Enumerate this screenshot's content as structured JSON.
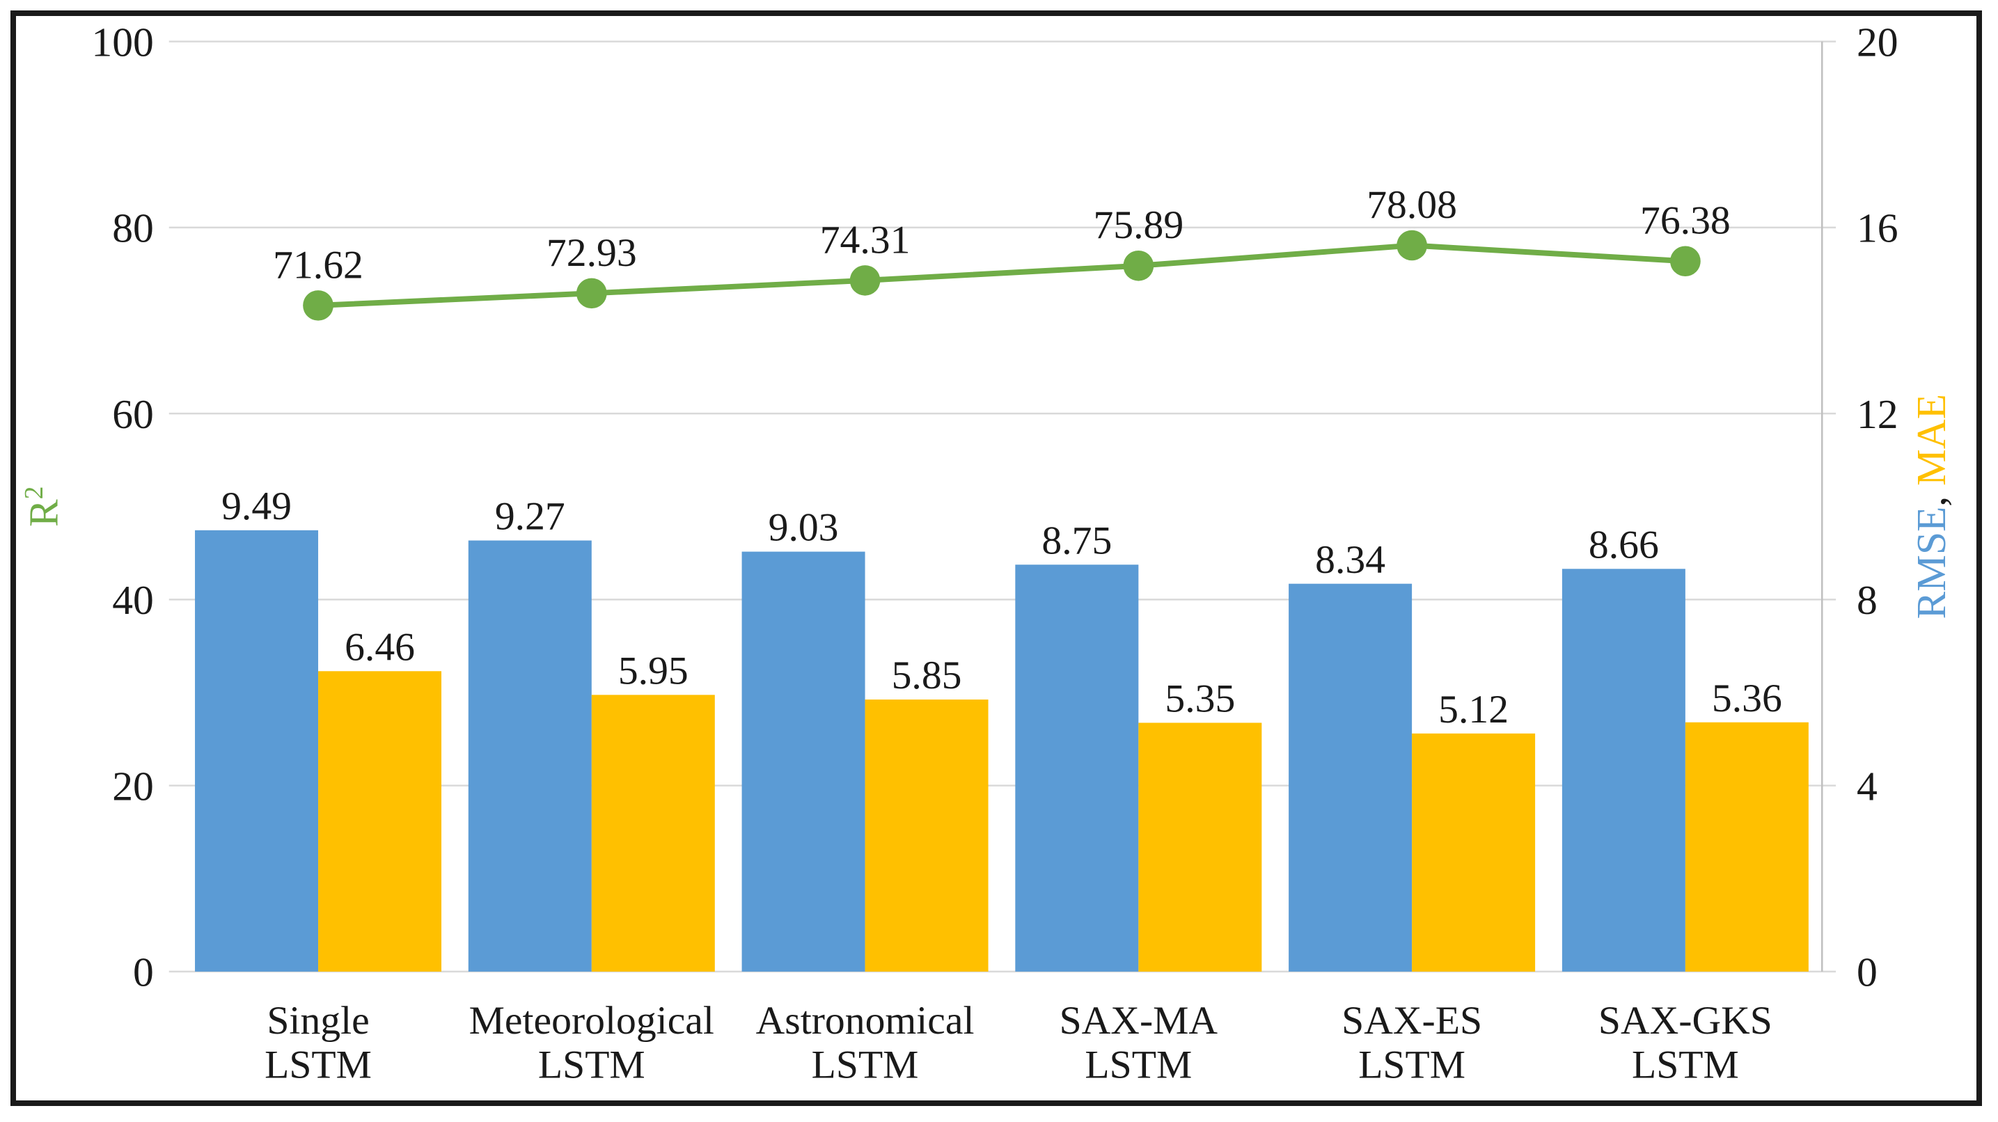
{
  "chart_data": {
    "type": "combo-bar-line",
    "categories": [
      [
        "Single",
        "LSTM"
      ],
      [
        "Meteorological",
        "LSTM"
      ],
      [
        "Astronomical",
        "LSTM"
      ],
      [
        "SAX-MA",
        "LSTM"
      ],
      [
        "SAX-ES",
        "LSTM"
      ],
      [
        "SAX-GKS",
        "LSTM"
      ]
    ],
    "series": [
      {
        "name": "RMSE",
        "type": "bar",
        "axis": "right",
        "color": "#5B9BD5",
        "values": [
          9.49,
          9.27,
          9.03,
          8.75,
          8.34,
          8.66
        ]
      },
      {
        "name": "MAE",
        "type": "bar",
        "axis": "right",
        "color": "#FFC000",
        "values": [
          6.46,
          5.95,
          5.85,
          5.35,
          5.12,
          5.36
        ]
      },
      {
        "name": "R2",
        "type": "line",
        "axis": "left",
        "color": "#70AD47",
        "values": [
          71.62,
          72.93,
          74.31,
          75.89,
          78.08,
          76.38
        ]
      }
    ],
    "left_axis": {
      "title_base": "R",
      "title_sup": "2",
      "title_color": "#70AD47",
      "range": [
        0,
        100
      ],
      "ticks": [
        0,
        20,
        40,
        60,
        80,
        100
      ]
    },
    "right_axis": {
      "title_parts": [
        {
          "text": "RMSE",
          "color": "#5B9BD5"
        },
        {
          "text": ", ",
          "color": "#1a1a1a"
        },
        {
          "text": "MAE",
          "color": "#FFC000"
        }
      ],
      "range": [
        0,
        20
      ],
      "ticks": [
        0,
        4,
        8,
        12,
        16,
        20
      ]
    },
    "grid": {
      "show": true,
      "color": "#D9D9D9",
      "axis_line_color": "#BFBFBF"
    },
    "text_color": "#1a1a1a",
    "background": "#FFFFFF",
    "value_decimals": 2
  }
}
